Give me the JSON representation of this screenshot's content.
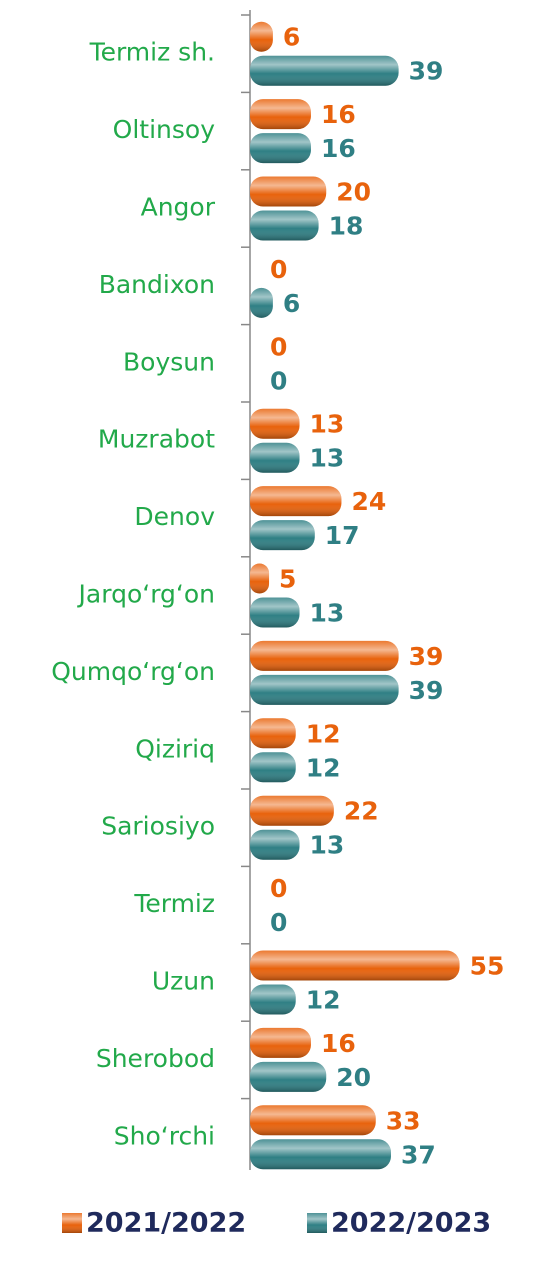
{
  "chart_data": {
    "type": "bar",
    "orientation": "horizontal",
    "categories": [
      "Termiz sh.",
      "Oltinsoy",
      "Angor",
      "Bandixon",
      "Boysun",
      "Muzrabot",
      "Denov",
      "Jarqo‘rg‘on",
      "Qumqo‘rg‘on",
      "Qiziriq",
      "Sariosiyo",
      "Termiz",
      "Uzun",
      "Sherobod",
      "Sho‘rchi"
    ],
    "series": [
      {
        "name": "2021/2022",
        "color": "#e8620c",
        "values": [
          6,
          16,
          20,
          0,
          0,
          13,
          24,
          5,
          39,
          12,
          22,
          0,
          55,
          16,
          33
        ]
      },
      {
        "name": "2022/2023",
        "color": "#2f7f84",
        "values": [
          39,
          16,
          18,
          6,
          0,
          13,
          17,
          13,
          39,
          12,
          13,
          0,
          12,
          20,
          37
        ]
      }
    ],
    "xlim": [
      0,
      58
    ],
    "legend": "bottom"
  }
}
